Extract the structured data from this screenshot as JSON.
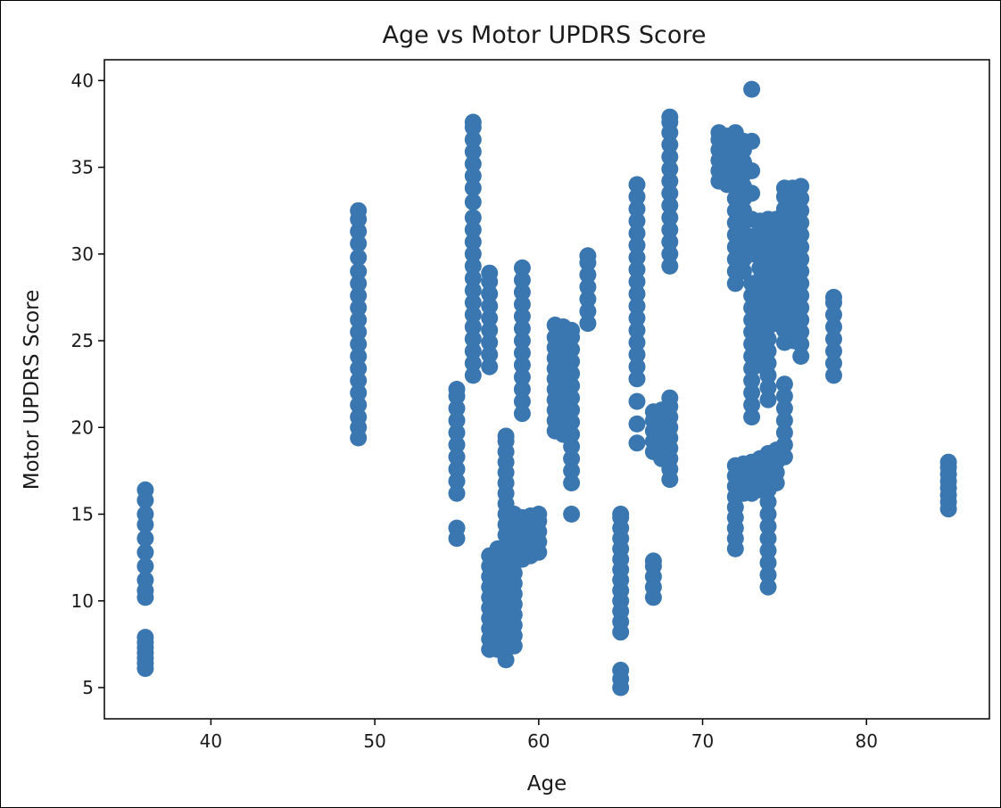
{
  "chart_data": {
    "type": "scatter",
    "title": "Age vs Motor UPDRS Score",
    "xlabel": "Age",
    "ylabel": "Motor UPDRS Score",
    "xlim": [
      33.5,
      87.5
    ],
    "ylim": [
      3.2,
      41.2
    ],
    "xticks": [
      40,
      50,
      60,
      70,
      80
    ],
    "yticks": [
      5,
      10,
      15,
      20,
      25,
      30,
      35,
      40
    ],
    "grid": false,
    "legend": "none",
    "marker_color": "#3a76b0",
    "series": [
      {
        "clusters": [
          {
            "x": 36,
            "y": [
              6.1,
              6.4,
              6.7,
              7.0,
              7.3,
              7.6,
              7.9,
              10.2,
              10.6,
              11.2,
              12.0,
              12.8,
              13.6,
              14.4,
              15.0,
              15.8,
              16.4
            ]
          },
          {
            "x": 49,
            "y": [
              19.4,
              20.0,
              20.6,
              21.3,
              22.0,
              22.7,
              23.4,
              24.1,
              24.8,
              25.5,
              26.2,
              26.9,
              27.6,
              28.3,
              29.0,
              29.8,
              30.6,
              31.3,
              32.0,
              32.5
            ]
          },
          {
            "x": 55,
            "y": [
              13.6,
              14.2,
              16.2,
              16.9,
              17.6,
              18.3,
              19.0,
              19.7,
              20.4,
              21.1,
              21.8,
              22.2
            ]
          },
          {
            "x": 56,
            "y": [
              23.0,
              23.7,
              24.4,
              25.1,
              25.8,
              26.5,
              27.2,
              27.9,
              28.6,
              29.3,
              30.0,
              30.7,
              31.4,
              32.1,
              33.0,
              33.8,
              34.5,
              35.2,
              35.9,
              36.6,
              37.3,
              37.6
            ]
          },
          {
            "x": 57,
            "y": [
              7.2,
              7.8,
              8.4,
              9.0,
              9.6,
              10.2,
              10.8,
              11.4,
              12.0,
              12.6,
              23.5,
              24.2,
              24.9,
              25.6,
              26.3,
              27.0,
              27.7,
              28.4,
              28.9
            ]
          },
          {
            "x": 57.5,
            "y": [
              7.2,
              7.8,
              8.4,
              9.0,
              9.6,
              10.2,
              10.8,
              11.4,
              12.0,
              12.6,
              13.0
            ]
          },
          {
            "x": 58,
            "y": [
              6.6,
              7.2,
              7.8,
              8.4,
              9.0,
              9.6,
              10.2,
              10.8,
              11.4,
              12.0,
              12.6,
              13.2,
              13.8,
              14.4,
              15.0,
              15.6,
              16.2,
              16.8,
              17.4,
              18.0,
              18.6,
              19.2,
              19.5
            ]
          },
          {
            "x": 58.5,
            "y": [
              7.4,
              8.0,
              8.6,
              9.2,
              9.8,
              10.4,
              11.0,
              11.6,
              12.2,
              12.8,
              13.4,
              14.0,
              14.6,
              15.0
            ]
          },
          {
            "x": 59,
            "y": [
              12.4,
              13.0,
              13.6,
              14.2,
              14.8,
              20.8,
              21.5,
              22.2,
              22.9,
              23.6,
              24.3,
              25.0,
              25.7,
              26.4,
              27.1,
              27.8,
              28.5,
              29.2
            ]
          },
          {
            "x": 59.5,
            "y": [
              12.6,
              13.2,
              13.8,
              14.4,
              14.9
            ]
          },
          {
            "x": 60,
            "y": [
              12.8,
              13.4,
              14.0,
              14.6,
              15.0
            ]
          },
          {
            "x": 61,
            "y": [
              19.8,
              20.4,
              21.0,
              21.6,
              22.2,
              22.8,
              23.4,
              24.0,
              24.6,
              25.2,
              25.9
            ]
          },
          {
            "x": 61.5,
            "y": [
              19.6,
              20.2,
              20.8,
              21.4,
              22.0,
              22.6,
              23.2,
              23.8,
              24.4,
              25.0,
              25.6,
              25.8
            ]
          },
          {
            "x": 62,
            "y": [
              15.0,
              16.8,
              17.5,
              18.2,
              18.9,
              19.6,
              20.3,
              21.0,
              21.7,
              22.4,
              23.1,
              23.8,
              24.5,
              25.2,
              25.6
            ]
          },
          {
            "x": 63,
            "y": [
              26.0,
              26.7,
              27.4,
              28.1,
              28.8,
              29.5,
              29.9
            ]
          },
          {
            "x": 65,
            "y": [
              5.0,
              5.5,
              6.0,
              8.2,
              8.8,
              9.4,
              10.0,
              10.6,
              11.2,
              11.8,
              12.4,
              13.0,
              13.6,
              14.2,
              14.8,
              15.0
            ]
          },
          {
            "x": 66,
            "y": [
              19.1,
              20.2,
              21.5,
              22.8,
              23.5,
              24.2,
              24.9,
              25.6,
              26.3,
              27.0,
              27.7,
              28.4,
              29.1,
              29.8,
              30.5,
              31.2,
              31.9,
              32.6,
              33.3,
              34.0
            ]
          },
          {
            "x": 67,
            "y": [
              10.2,
              10.8,
              11.4,
              12.0,
              12.3,
              18.6,
              19.2,
              19.8,
              20.4,
              20.9
            ]
          },
          {
            "x": 67.5,
            "y": [
              18.2,
              18.8,
              19.4,
              20.0,
              20.6,
              21.0
            ]
          },
          {
            "x": 68,
            "y": [
              17.0,
              17.6,
              18.2,
              18.8,
              19.4,
              20.0,
              20.6,
              21.2,
              21.7,
              29.3,
              30.0,
              30.7,
              31.4,
              32.1,
              32.8,
              33.5,
              34.2,
              34.9,
              35.6,
              36.3,
              37.0,
              37.6,
              37.9
            ]
          },
          {
            "x": 71,
            "y": [
              34.2,
              34.8,
              35.4,
              36.0,
              36.6,
              37.0
            ]
          },
          {
            "x": 71.5,
            "y": [
              34.0,
              34.6,
              35.2,
              35.8,
              36.4,
              36.8
            ]
          },
          {
            "x": 72,
            "y": [
              13.0,
              13.6,
              14.2,
              14.8,
              15.4,
              16.0,
              16.6,
              17.2,
              17.8,
              28.3,
              29.0,
              29.7,
              30.4,
              31.1,
              31.8,
              32.5,
              33.2,
              33.9,
              34.6,
              35.3,
              36.0,
              36.6,
              37.0
            ]
          },
          {
            "x": 72.5,
            "y": [
              16.2,
              16.8,
              17.4,
              17.9,
              29.0,
              29.7,
              30.4,
              31.1,
              31.8,
              32.5,
              33.2,
              33.9,
              34.6,
              35.3,
              36.0,
              36.5
            ]
          },
          {
            "x": 73,
            "y": [
              16.2,
              16.8,
              17.4,
              18.0,
              20.6,
              21.3,
              22.0,
              22.7,
              23.4,
              24.1,
              24.8,
              25.5,
              26.2,
              26.9,
              27.6,
              28.3,
              30.0,
              31.0,
              32.0,
              33.5,
              34.8,
              36.5,
              39.5
            ]
          },
          {
            "x": 73.5,
            "y": [
              16.4,
              17.0,
              17.6,
              18.2,
              23.6,
              24.3,
              25.0,
              25.7,
              26.4,
              27.1,
              27.8,
              28.5,
              29.2,
              29.9,
              30.6,
              31.3,
              31.9
            ]
          },
          {
            "x": 74,
            "y": [
              10.8,
              11.5,
              12.2,
              12.9,
              13.6,
              14.3,
              15.0,
              15.7,
              16.4,
              17.1,
              17.8,
              18.5,
              21.6,
              22.3,
              23.0,
              23.7,
              24.4,
              25.1,
              25.8,
              26.5,
              27.2,
              27.9,
              28.6,
              29.3,
              30.0,
              30.7,
              31.4,
              32.0
            ]
          },
          {
            "x": 74.5,
            "y": [
              16.8,
              17.4,
              18.0,
              18.7,
              26.0,
              26.7,
              27.4,
              28.1,
              28.8,
              29.5,
              30.2,
              30.9,
              31.6,
              32.0
            ]
          },
          {
            "x": 75,
            "y": [
              18.3,
              19.0,
              19.7,
              20.4,
              21.1,
              21.8,
              22.5,
              24.9,
              25.6,
              26.3,
              27.0,
              27.7,
              28.4,
              29.1,
              29.8,
              30.5,
              31.2,
              31.9,
              32.6,
              33.3,
              33.8
            ]
          },
          {
            "x": 75.5,
            "y": [
              25.0,
              25.7,
              26.4,
              27.1,
              27.8,
              28.5,
              29.2,
              29.9,
              30.6,
              31.3,
              32.0,
              32.7,
              33.4,
              33.8
            ]
          },
          {
            "x": 76,
            "y": [
              24.1,
              24.8,
              25.5,
              26.2,
              26.9,
              27.6,
              28.3,
              29.0,
              29.7,
              30.4,
              31.1,
              31.8,
              32.5,
              33.2,
              33.9
            ]
          },
          {
            "x": 78,
            "y": [
              23.0,
              23.7,
              24.4,
              25.1,
              25.8,
              26.5,
              27.2,
              27.5
            ]
          },
          {
            "x": 85,
            "y": [
              15.3,
              15.7,
              16.1,
              16.5,
              16.9,
              17.3,
              17.7,
              18.0
            ]
          }
        ]
      }
    ]
  }
}
